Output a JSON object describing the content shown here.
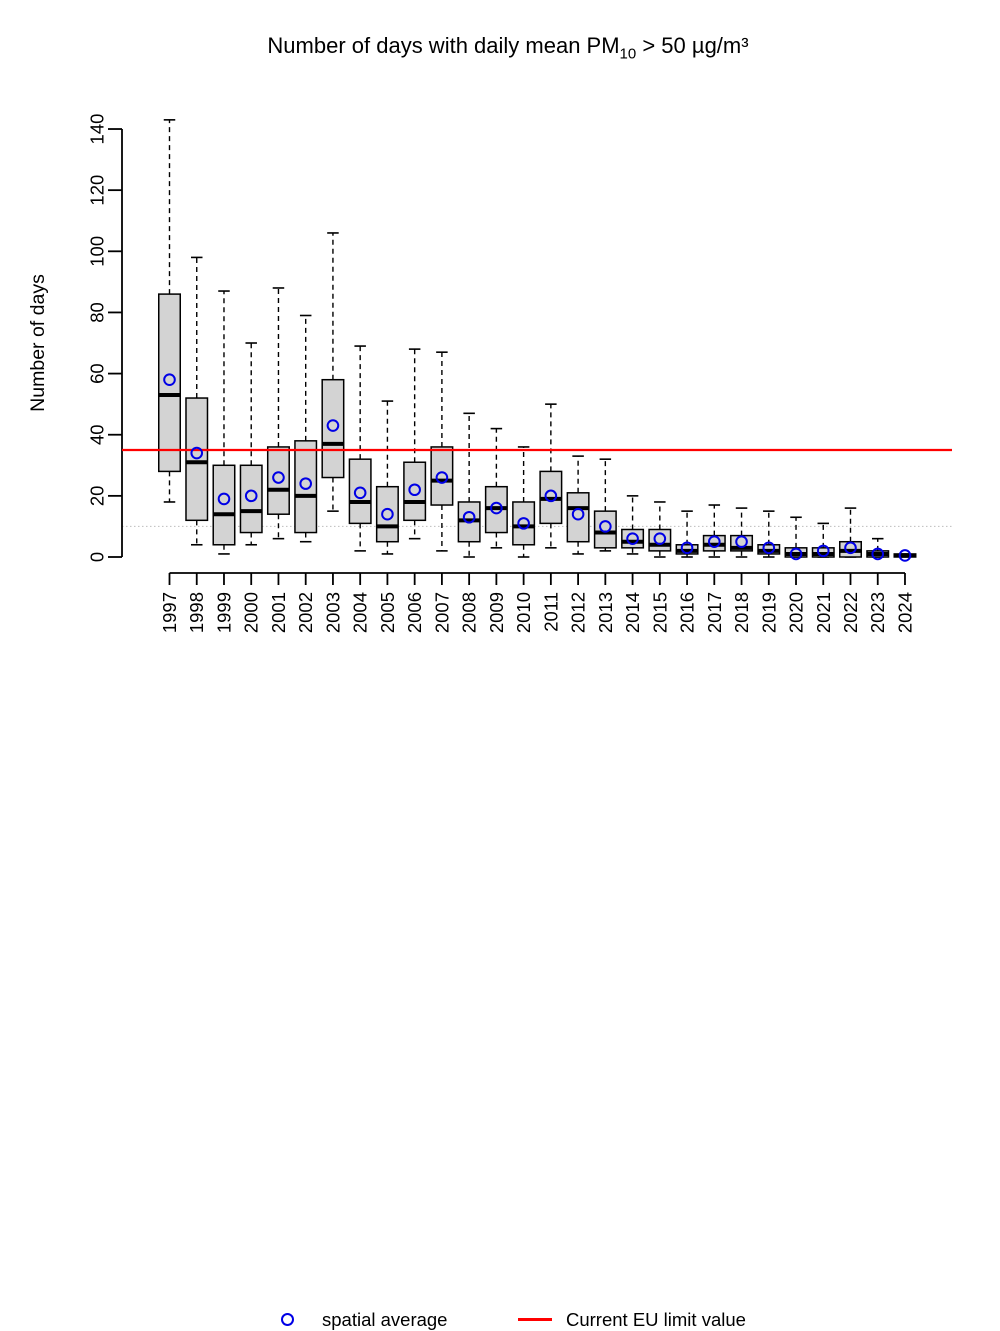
{
  "title": {
    "prefix": "Number of days with daily mean PM",
    "subscript": "10",
    "suffix": " > 50 µg/m³"
  },
  "legend": {
    "items": [
      {
        "symbol": "open-circle",
        "color": "#0000e6",
        "label": "spatial average"
      },
      {
        "symbol": "line",
        "color": "#ff0000",
        "label": "Current EU limit value"
      }
    ]
  },
  "colors": {
    "box_fill": "#d3d3d3",
    "box_border": "#000000",
    "mean_marker": "#0000e6",
    "eu_limit_line": "#ff0000",
    "dotted_reference_line": "#bdbdbd",
    "axis": "#000000"
  },
  "chart_data": {
    "type": "boxplot",
    "title": "Number of days with daily mean PM10 > 50 µg/m³",
    "ylabel": "Number of days",
    "xlabel": "",
    "ylim": [
      0,
      145
    ],
    "y_ticks": [
      0,
      20,
      40,
      60,
      80,
      100,
      120,
      140
    ],
    "reference_lines": [
      {
        "name": "eu_limit",
        "value": 35,
        "style": "solid",
        "color": "#ff0000"
      },
      {
        "name": "dotted_reference",
        "value": 10,
        "style": "dotted",
        "color": "#bdbdbd"
      }
    ],
    "legend_entries": [
      "spatial average",
      "Current EU limit value"
    ],
    "categories": [
      "1997",
      "1998",
      "1999",
      "2000",
      "2001",
      "2002",
      "2003",
      "2004",
      "2005",
      "2006",
      "2007",
      "2008",
      "2009",
      "2010",
      "2011",
      "2012",
      "2013",
      "2014",
      "2015",
      "2016",
      "2017",
      "2018",
      "2019",
      "2020",
      "2021",
      "2022",
      "2023",
      "2024"
    ],
    "boxes": [
      {
        "year": "1997",
        "whisker_low": 18,
        "q1": 28,
        "median": 53,
        "q3": 86,
        "whisker_high": 143,
        "mean": 58
      },
      {
        "year": "1998",
        "whisker_low": 4,
        "q1": 12,
        "median": 31,
        "q3": 52,
        "whisker_high": 98,
        "mean": 34
      },
      {
        "year": "1999",
        "whisker_low": 1,
        "q1": 4,
        "median": 14,
        "q3": 30,
        "whisker_high": 87,
        "mean": 19
      },
      {
        "year": "2000",
        "whisker_low": 4,
        "q1": 8,
        "median": 15,
        "q3": 30,
        "whisker_high": 70,
        "mean": 20
      },
      {
        "year": "2001",
        "whisker_low": 6,
        "q1": 14,
        "median": 22,
        "q3": 36,
        "whisker_high": 88,
        "mean": 26
      },
      {
        "year": "2002",
        "whisker_low": 5,
        "q1": 8,
        "median": 20,
        "q3": 38,
        "whisker_high": 79,
        "mean": 24
      },
      {
        "year": "2003",
        "whisker_low": 15,
        "q1": 26,
        "median": 37,
        "q3": 58,
        "whisker_high": 106,
        "mean": 43
      },
      {
        "year": "2004",
        "whisker_low": 2,
        "q1": 11,
        "median": 18,
        "q3": 32,
        "whisker_high": 69,
        "mean": 21
      },
      {
        "year": "2005",
        "whisker_low": 1,
        "q1": 5,
        "median": 10,
        "q3": 23,
        "whisker_high": 51,
        "mean": 14
      },
      {
        "year": "2006",
        "whisker_low": 6,
        "q1": 12,
        "median": 18,
        "q3": 31,
        "whisker_high": 68,
        "mean": 22
      },
      {
        "year": "2007",
        "whisker_low": 2,
        "q1": 17,
        "median": 25,
        "q3": 36,
        "whisker_high": 67,
        "mean": 26
      },
      {
        "year": "2008",
        "whisker_low": 0,
        "q1": 5,
        "median": 12,
        "q3": 18,
        "whisker_high": 47,
        "mean": 13
      },
      {
        "year": "2009",
        "whisker_low": 3,
        "q1": 8,
        "median": 16,
        "q3": 23,
        "whisker_high": 42,
        "mean": 16
      },
      {
        "year": "2010",
        "whisker_low": 0,
        "q1": 4,
        "median": 10,
        "q3": 18,
        "whisker_high": 36,
        "mean": 11
      },
      {
        "year": "2011",
        "whisker_low": 3,
        "q1": 11,
        "median": 19,
        "q3": 28,
        "whisker_high": 50,
        "mean": 20
      },
      {
        "year": "2012",
        "whisker_low": 1,
        "q1": 5,
        "median": 16,
        "q3": 21,
        "whisker_high": 33,
        "mean": 14
      },
      {
        "year": "2013",
        "whisker_low": 2,
        "q1": 3,
        "median": 8,
        "q3": 15,
        "whisker_high": 32,
        "mean": 10
      },
      {
        "year": "2014",
        "whisker_low": 1,
        "q1": 3,
        "median": 5,
        "q3": 9,
        "whisker_high": 20,
        "mean": 6
      },
      {
        "year": "2015",
        "whisker_low": 0,
        "q1": 2,
        "median": 4,
        "q3": 9,
        "whisker_high": 18,
        "mean": 6
      },
      {
        "year": "2016",
        "whisker_low": 0,
        "q1": 1,
        "median": 2,
        "q3": 4,
        "whisker_high": 15,
        "mean": 3
      },
      {
        "year": "2017",
        "whisker_low": 0,
        "q1": 2,
        "median": 4,
        "q3": 7,
        "whisker_high": 17,
        "mean": 5
      },
      {
        "year": "2018",
        "whisker_low": 0,
        "q1": 2,
        "median": 3,
        "q3": 7,
        "whisker_high": 16,
        "mean": 5
      },
      {
        "year": "2019",
        "whisker_low": 0,
        "q1": 1,
        "median": 2,
        "q3": 4,
        "whisker_high": 15,
        "mean": 3
      },
      {
        "year": "2020",
        "whisker_low": 0,
        "q1": 0,
        "median": 1,
        "q3": 3,
        "whisker_high": 13,
        "mean": 1
      },
      {
        "year": "2021",
        "whisker_low": 0,
        "q1": 0,
        "median": 1,
        "q3": 3,
        "whisker_high": 11,
        "mean": 2
      },
      {
        "year": "2022",
        "whisker_low": 0,
        "q1": 0,
        "median": 2,
        "q3": 5,
        "whisker_high": 16,
        "mean": 3
      },
      {
        "year": "2023",
        "whisker_low": 0,
        "q1": 0,
        "median": 1,
        "q3": 2,
        "whisker_high": 6,
        "mean": 1
      },
      {
        "year": "2024",
        "whisker_low": 0,
        "q1": 0,
        "median": 0.5,
        "q3": 1,
        "whisker_high": 1,
        "mean": 0.5
      }
    ]
  }
}
